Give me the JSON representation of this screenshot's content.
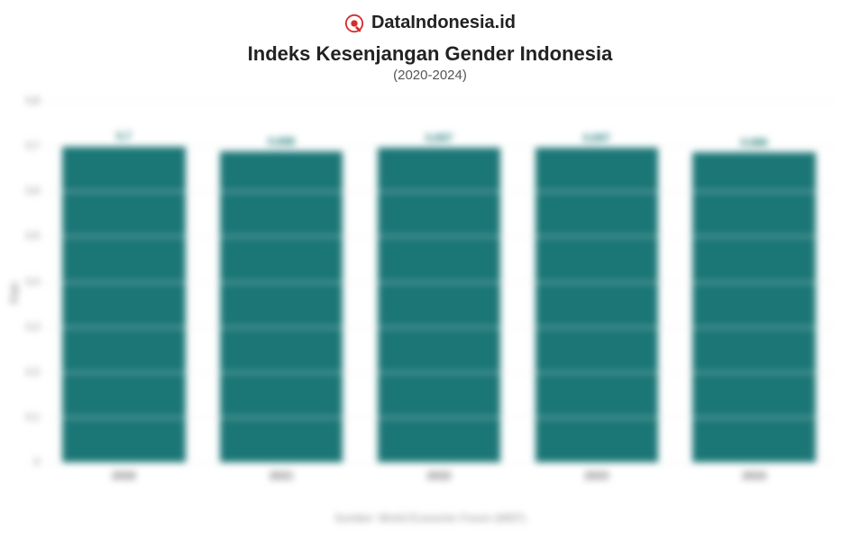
{
  "brand": {
    "name": "DataIndonesia.id",
    "logo_color_primary": "#d32f2f",
    "logo_color_accent": "#c61f1f"
  },
  "chart": {
    "type": "bar",
    "title": "Indeks Kesenjangan Gender Indonesia",
    "subtitle": "(2020-2024)",
    "ylabel": "Poin",
    "source_text": "Sumber: World Economic Forum (WEF)",
    "categories": [
      "2020",
      "2021",
      "2022",
      "2023",
      "2024"
    ],
    "values": [
      0.7,
      0.688,
      0.697,
      0.697,
      0.686
    ],
    "value_labels": [
      "0,7",
      "0,688",
      "0,697",
      "0,697",
      "0,686"
    ],
    "bar_color": "#1b7676",
    "value_label_color": "#1b7676",
    "ylim": [
      0,
      0.8
    ],
    "ytick_step": 0.1,
    "ytick_labels": [
      "0",
      "0,1",
      "0,2",
      "0,3",
      "0,4",
      "0,5",
      "0,6",
      "0,7",
      "0,8"
    ],
    "grid_color": "#eeeeee",
    "background_color": "#ffffff",
    "title_fontsize": 22,
    "subtitle_fontsize": 15,
    "label_fontsize": 12,
    "bar_width_ratio": 0.78,
    "plot_blurred": true
  }
}
